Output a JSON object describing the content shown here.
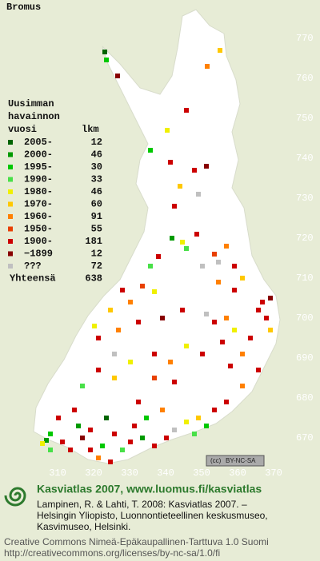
{
  "title": "Bromus",
  "legend": {
    "heading": [
      "Uusimman",
      "havainnon",
      "vuosi"
    ],
    "count_header": "lkm",
    "rows": [
      {
        "label": "2005-",
        "count": 12,
        "color": "#006400"
      },
      {
        "label": "2000-",
        "count": 46,
        "color": "#009a00"
      },
      {
        "label": "1995-",
        "count": 30,
        "color": "#00c800"
      },
      {
        "label": "1990-",
        "count": 33,
        "color": "#48e048"
      },
      {
        "label": "1980-",
        "count": 46,
        "color": "#f0f000"
      },
      {
        "label": "1970-",
        "count": 60,
        "color": "#ffc800"
      },
      {
        "label": "1960-",
        "count": 91,
        "color": "#ff8000"
      },
      {
        "label": "1950-",
        "count": 55,
        "color": "#e84000"
      },
      {
        "label": "1900-",
        "count": 181,
        "color": "#cc0000"
      },
      {
        "label": "−1899",
        "count": 12,
        "color": "#880000"
      },
      {
        "label": "???",
        "count": 72,
        "color": "#c0c0c0"
      }
    ],
    "total_label": "Yhteensä",
    "total": 638
  },
  "map": {
    "y_labels": [
      "770",
      "760",
      "750",
      "740",
      "730",
      "720",
      "710",
      "700",
      "690",
      "680",
      "670"
    ],
    "x_labels": [
      "310",
      "320",
      "330",
      "340",
      "350",
      "360",
      "370"
    ]
  },
  "license_badge": "BY-NC-SA",
  "footer": {
    "site": "Kasviatlas 2007, www.luomus.fi/kasviatlas",
    "citation": [
      "Lampinen, R. & Lahti, T. 2008: Kasviatlas 2007. –",
      "Helsingin Yliopisto, Luonnontieteellinen keskusmuseo,",
      "Kasvimuseo, Helsinki."
    ],
    "license": [
      "Creative Commons Nimeä-Epäkaupallinen-Tarttuva 1.0 Suomi",
      "http://creativecommons.org/licenses/by-nc-sa/1.0/fi"
    ]
  }
}
